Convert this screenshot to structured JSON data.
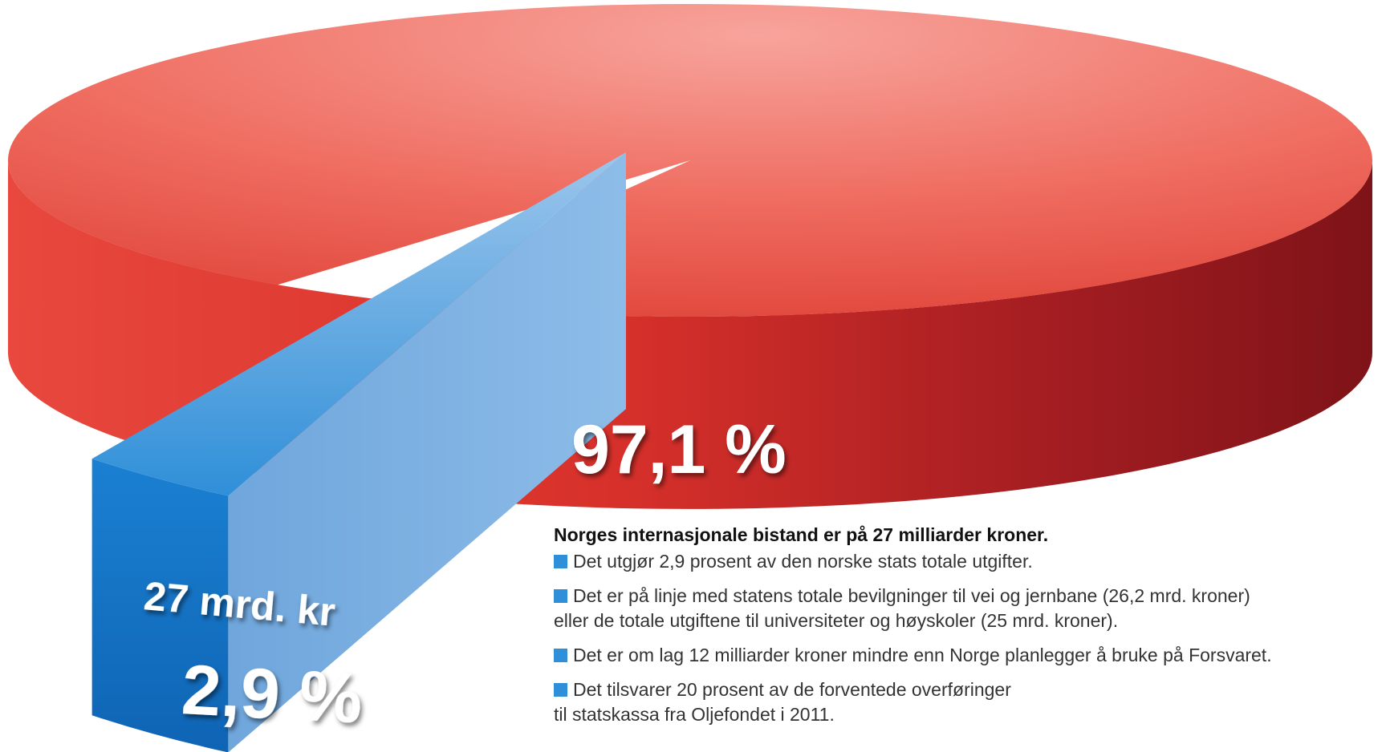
{
  "chart_data": {
    "type": "pie",
    "values": [
      97.1,
      2.9
    ],
    "value_labels": [
      "97,1 %",
      "2,9 %"
    ],
    "colors": [
      "#e8413a",
      "#2f8fd8"
    ],
    "annotation": "27 mrd. kr"
  },
  "notes": {
    "heading": "Norges internasjonale bistand er på 27 milliarder kroner.",
    "bullets": [
      [
        "Det utgjør 2,9 prosent av den norske stats totale utgifter."
      ],
      [
        "Det er på linje med statens totale bevilgninger til vei og jernbane (26,2 mrd. kroner)",
        "eller de totale utgiftene til universiteter og høyskoler (25 mrd. kroner)."
      ],
      [
        "Det er om lag 12 milliarder kroner mindre enn Norge planlegger å bruke på Forsvaret."
      ],
      [
        "Det tilsvarer 20 prosent av de forventede overføringer",
        "til statskassa fra Oljefondet i 2011."
      ]
    ]
  }
}
